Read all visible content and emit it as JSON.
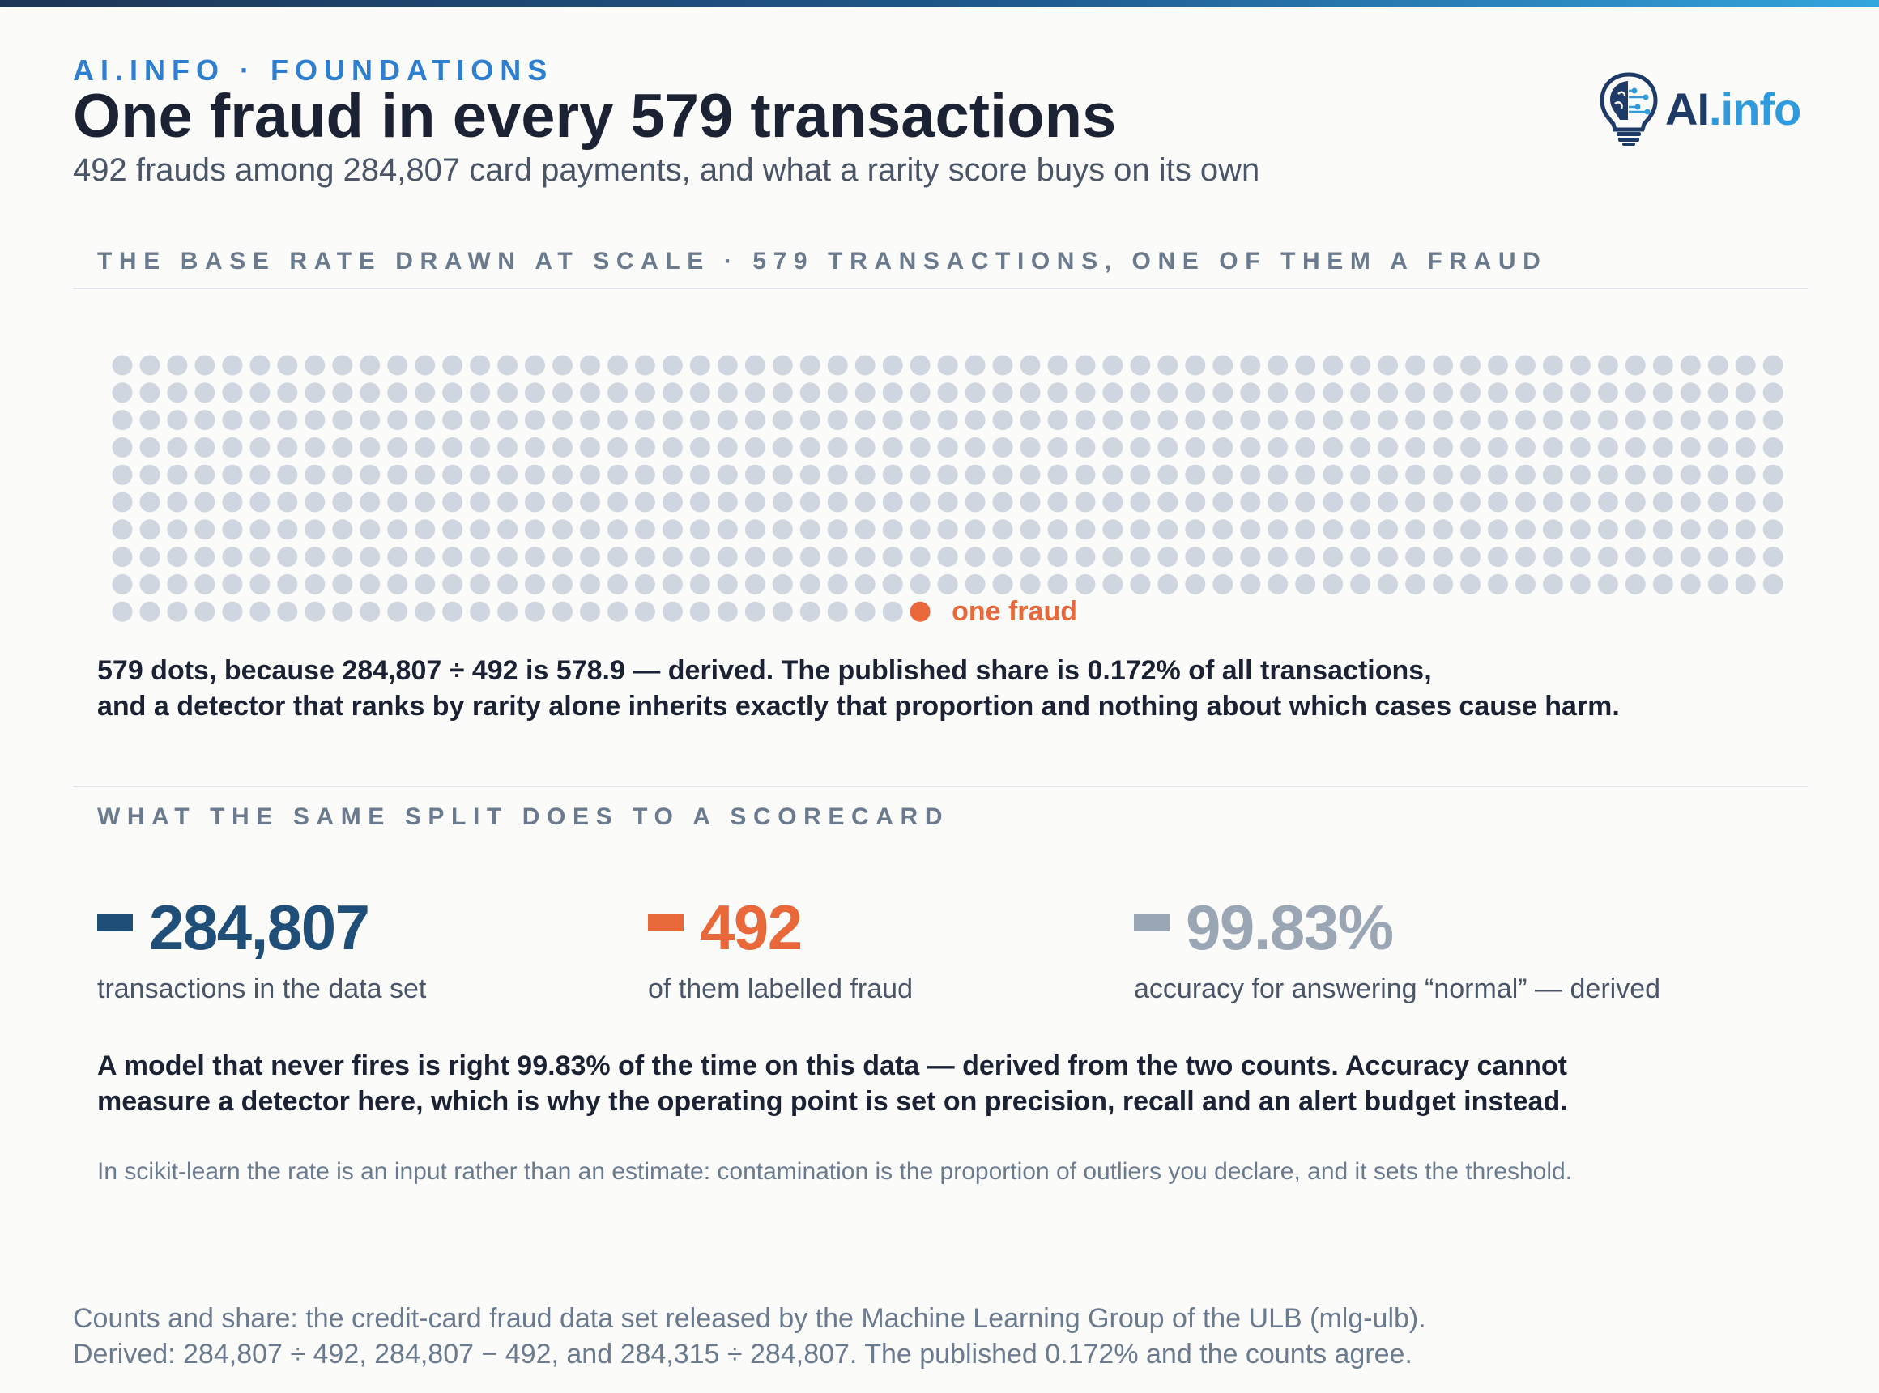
{
  "header": {
    "kicker": "AI.INFO · FOUNDATIONS",
    "title": "One fraud in every 579 transactions",
    "subtitle": "492 frauds among 284,807 card payments, and what a rarity score buys on its own"
  },
  "logo": {
    "ai": "AI",
    "info": ".info"
  },
  "section1": {
    "label": "THE BASE RATE DRAWN AT SCALE · 579 TRANSACTIONS, ONE OF THEM A FRAUD"
  },
  "chart_data": {
    "type": "waffle",
    "total": 579,
    "highlighted": 1,
    "highlight_index": 578,
    "highlight_label": "one fraud",
    "colors": {
      "normal": "#cfd6df",
      "fraud": "#e8683a"
    }
  },
  "caption": {
    "line1": "579 dots, because 284,807 ÷ 492 is 578.9 — derived. The published share is 0.172% of all transactions,",
    "line2": "and a detector that ranks by rarity alone inherits exactly that proportion and nothing about which cases cause harm."
  },
  "section2": {
    "label": "WHAT THE SAME SPLIT DOES TO A SCORECARD"
  },
  "stats": [
    {
      "value": "284,807",
      "label": "transactions in the data set",
      "color": "#1f4e79"
    },
    {
      "value": "492",
      "label": "of them labelled fraud",
      "color": "#e8683a"
    },
    {
      "value": "99.83%",
      "label": "accuracy for answering “normal” — derived",
      "color": "#9aa6b4"
    }
  ],
  "explain": {
    "line1": "A model that never fires is right 99.83% of the time on this data — derived from the two counts. Accuracy cannot",
    "line2": "measure a detector here, which is why the operating point is set on precision, recall and an alert budget instead."
  },
  "note": "In scikit-learn the rate is an input rather than an estimate: contamination is the proportion of outliers you declare, and it sets the threshold.",
  "source": {
    "line1": "Counts and share: the credit-card fraud data set released by the Machine Learning Group of the ULB (mlg-ulb).",
    "line2": "Derived: 284,807 ÷ 492, 284,807 − 492, and 284,315 ÷ 284,807. The published 0.172% and the counts agree."
  }
}
